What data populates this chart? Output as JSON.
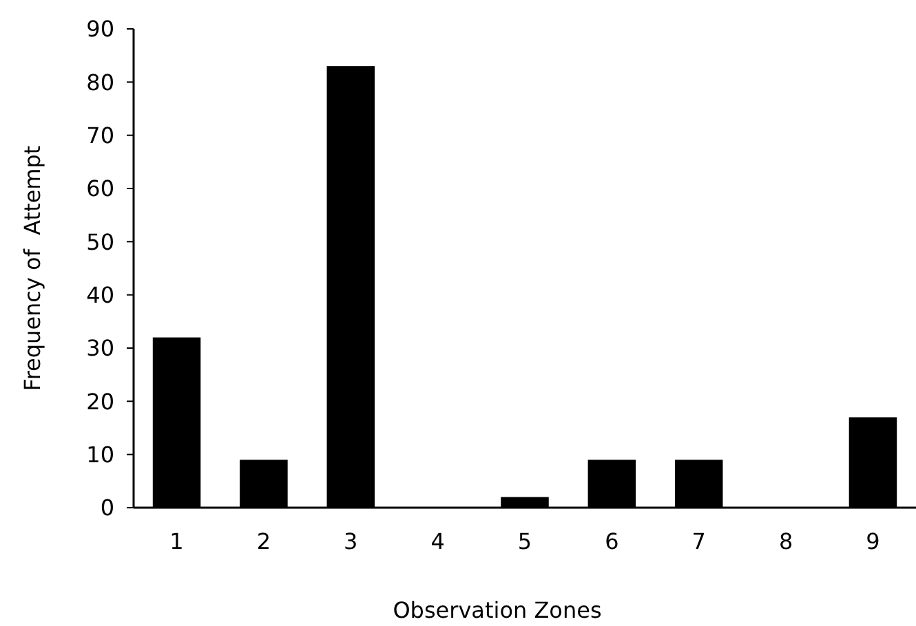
{
  "chart_data": {
    "type": "bar",
    "xlabel": "Observation Zones",
    "ylabel": "Frequency of  Attempt",
    "categories": [
      "1",
      "2",
      "3",
      "4",
      "5",
      "6",
      "7",
      "8",
      "9"
    ],
    "values": [
      32,
      9,
      83,
      0,
      2,
      9,
      9,
      0,
      17
    ],
    "color": "#000000",
    "ylim": [
      0,
      90
    ],
    "yticks": [
      0,
      10,
      20,
      30,
      40,
      50,
      60,
      70,
      80,
      90
    ],
    "grid": false
  }
}
